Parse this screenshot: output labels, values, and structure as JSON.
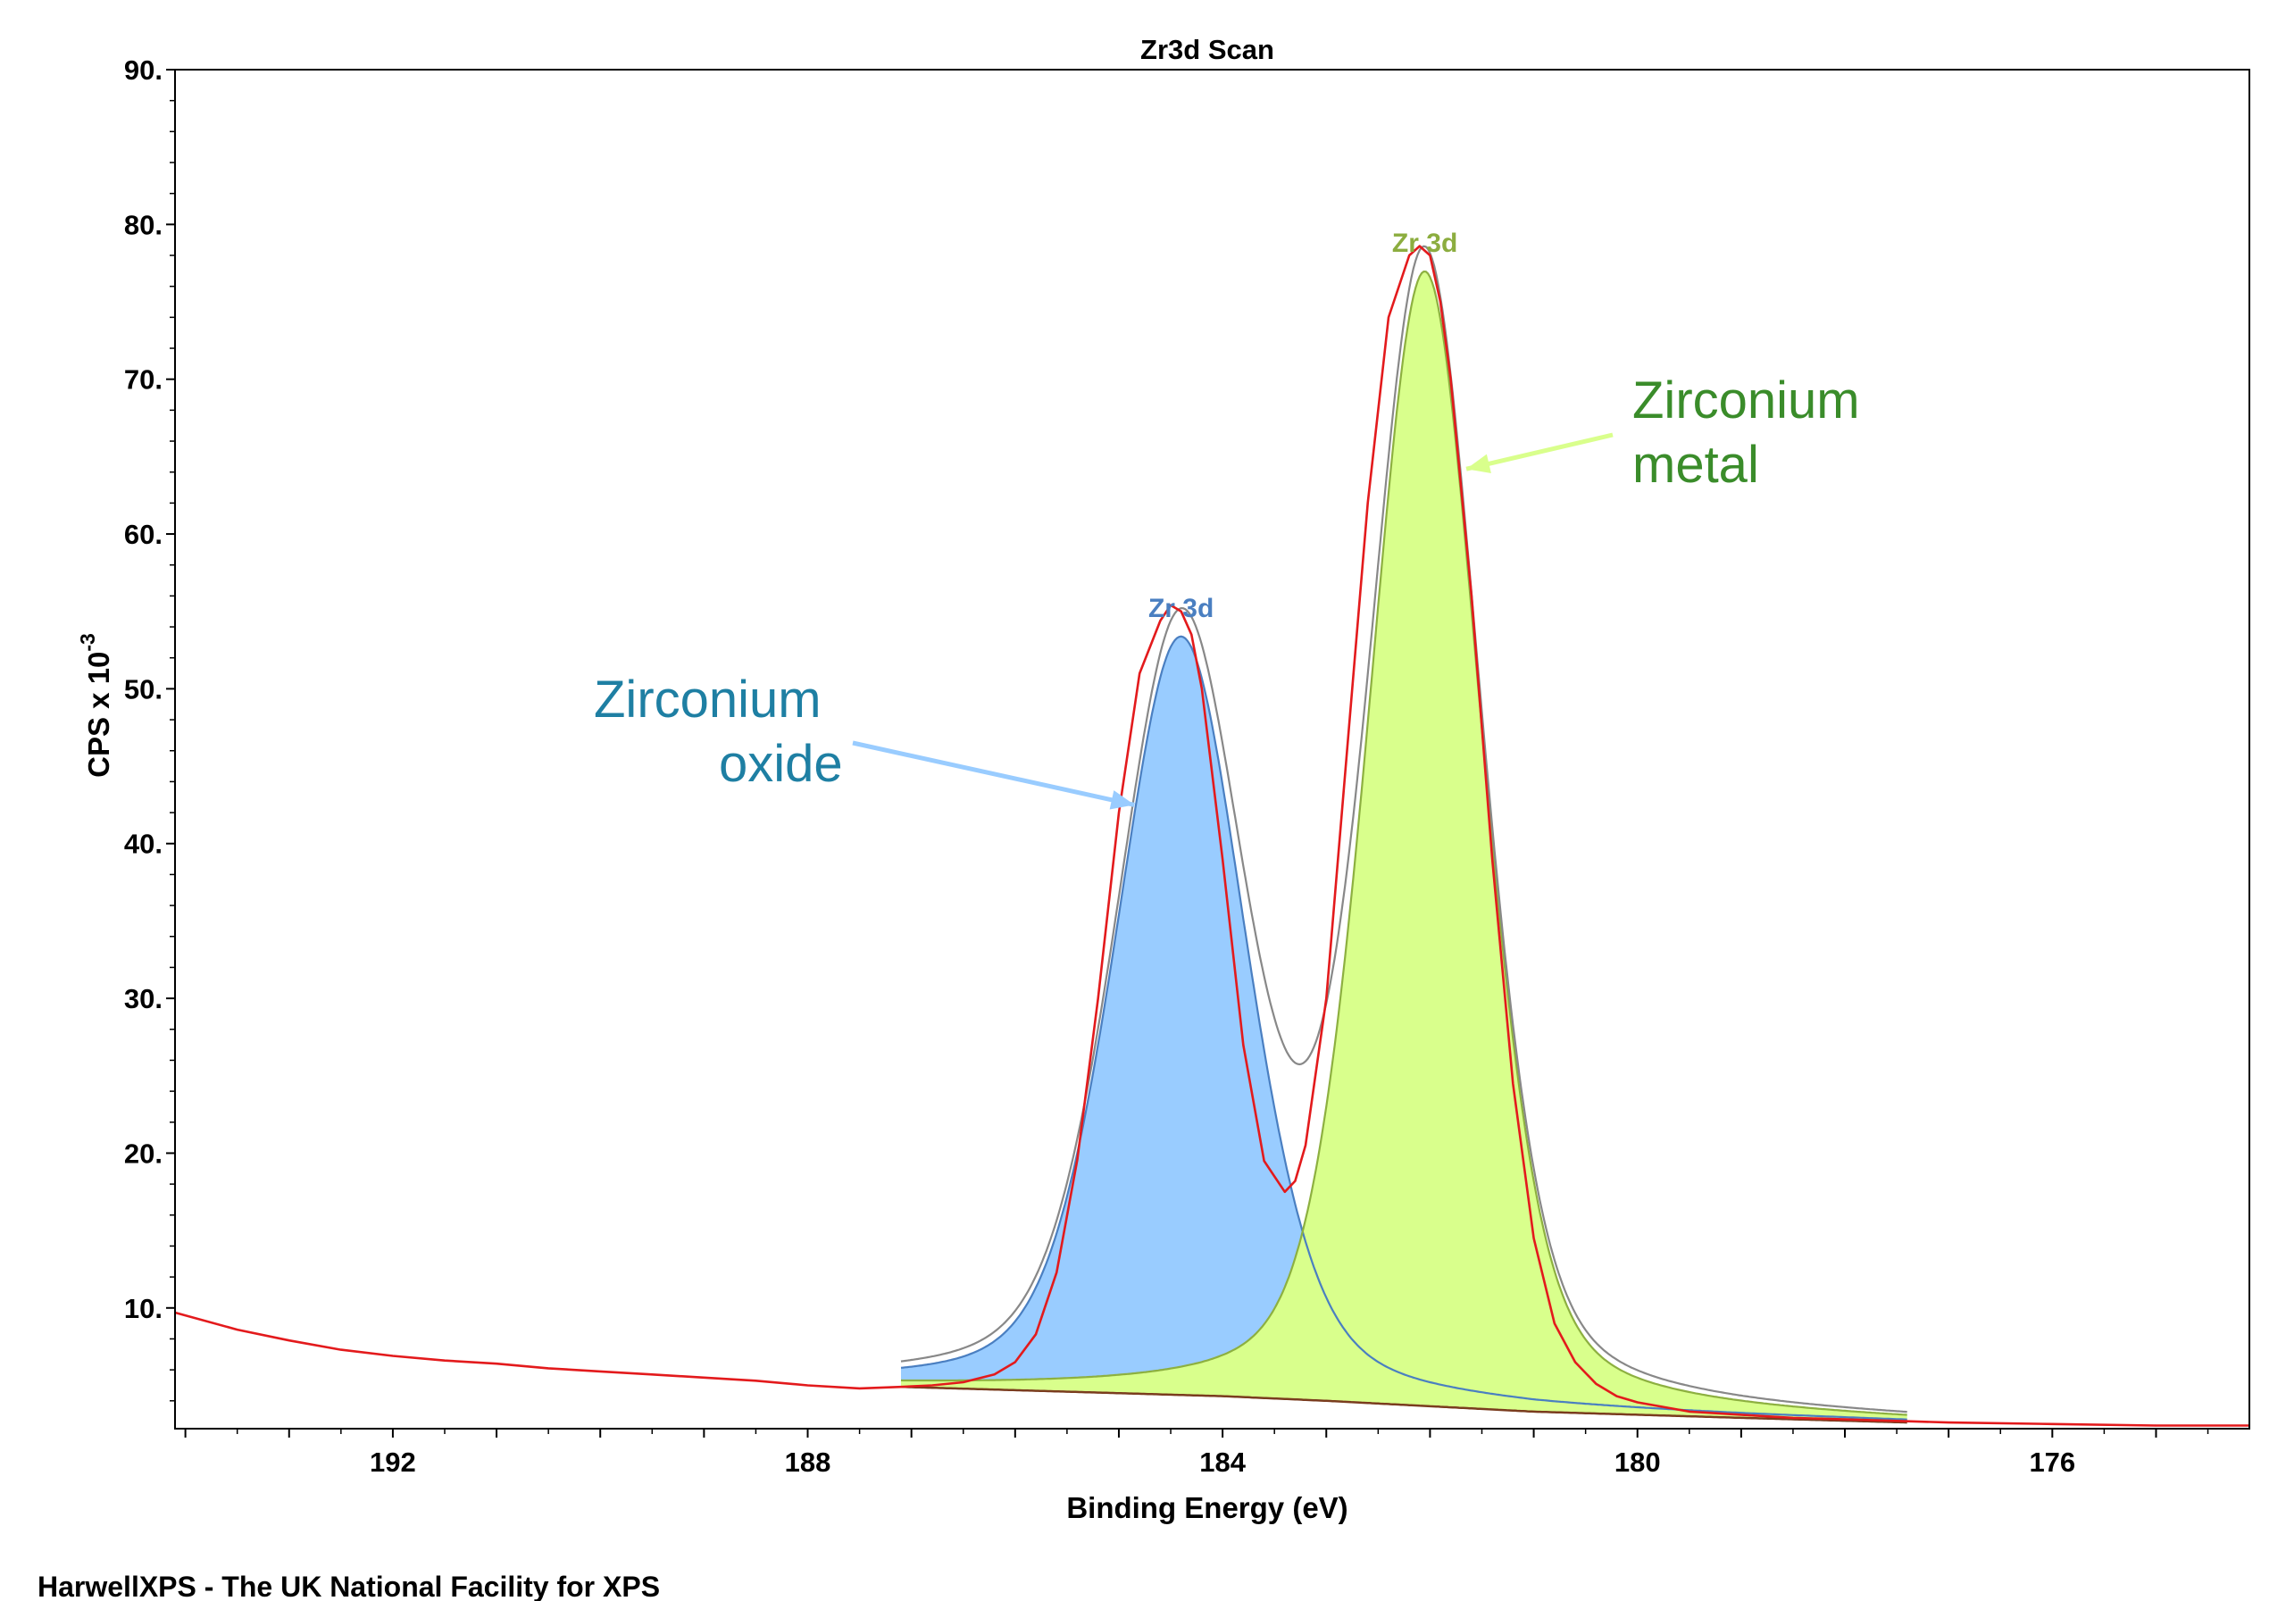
{
  "chart_data": {
    "type": "line",
    "title": "Zr3d Scan",
    "xlabel": "Binding Energy (eV)",
    "ylabel_base": "CPS x 10",
    "ylabel_exponent": "-3",
    "xlim": [
      194.1,
      174.1
    ],
    "ylim": [
      2.2,
      90
    ],
    "x_ticks": [
      192,
      188,
      184,
      180,
      176
    ],
    "x_tick_labels": [
      "192",
      "188",
      "184",
      "180",
      "176"
    ],
    "y_ticks": [
      10,
      20,
      30,
      40,
      50,
      60,
      70,
      80,
      90
    ],
    "y_tick_labels": [
      "10.",
      "20.",
      "30.",
      "40.",
      "50.",
      "60.",
      "70.",
      "80.",
      "90."
    ],
    "components": [
      {
        "name": "Zr 3d",
        "label": "Zr 3d",
        "role": "oxide",
        "center_eV": 184.4,
        "height": 49,
        "fwhm_eV": 1.5,
        "fill_color": "#99ccff",
        "line_color": "#4a7fc1",
        "label_color": "#4a7fc1"
      },
      {
        "name": "Zr 3d",
        "label": "Zr 3d",
        "role": "metal",
        "center_eV": 182.05,
        "height": 73.3,
        "fwhm_eV": 1.3,
        "fill_color": "#d9ff8c",
        "line_color": "#8db040",
        "label_color": "#8cad3f"
      }
    ],
    "background": {
      "x_range": [
        187.1,
        177.4
      ],
      "points": [
        [
          187.1,
          4.9
        ],
        [
          184.0,
          4.3
        ],
        [
          183.0,
          4.0
        ],
        [
          181.0,
          3.3
        ],
        [
          179.0,
          2.9
        ],
        [
          177.4,
          2.6
        ]
      ],
      "color": "#7a3c1e"
    },
    "envelope": {
      "name": "envelope",
      "color": "#888888"
    },
    "measured": {
      "name": "measured data",
      "color": "#e31a1c",
      "x": [
        194.1,
        193.5,
        193.0,
        192.5,
        192.0,
        191.5,
        191.0,
        190.5,
        190.0,
        189.5,
        189.0,
        188.5,
        188.0,
        187.5,
        187.1,
        186.8,
        186.5,
        186.2,
        186.0,
        185.8,
        185.6,
        185.4,
        185.2,
        185.0,
        184.8,
        184.6,
        184.5,
        184.4,
        184.3,
        184.2,
        184.0,
        183.8,
        183.6,
        183.4,
        183.3,
        183.2,
        183.0,
        182.8,
        182.6,
        182.4,
        182.2,
        182.1,
        182.0,
        181.9,
        181.8,
        181.6,
        181.4,
        181.2,
        181.0,
        180.8,
        180.6,
        180.4,
        180.2,
        180.0,
        179.5,
        179.0,
        178.5,
        178.0,
        177.5,
        177.0,
        176.0,
        175.0,
        174.1
      ],
      "y": [
        9.7,
        8.6,
        7.9,
        7.3,
        6.9,
        6.6,
        6.4,
        6.1,
        5.9,
        5.7,
        5.5,
        5.3,
        5.0,
        4.8,
        4.9,
        5.0,
        5.2,
        5.7,
        6.5,
        8.3,
        12.3,
        19.6,
        30.0,
        42.0,
        51.0,
        54.4,
        55.4,
        55.0,
        53.5,
        50.0,
        39.0,
        27.0,
        19.5,
        17.5,
        18.2,
        20.5,
        30.0,
        46.0,
        62.0,
        74.0,
        78.0,
        78.6,
        78.0,
        75.0,
        70.0,
        56.0,
        39.0,
        24.5,
        14.5,
        9.0,
        6.5,
        5.1,
        4.3,
        3.9,
        3.3,
        3.1,
        2.9,
        2.8,
        2.7,
        2.6,
        2.5,
        2.4,
        2.4
      ]
    },
    "annotations": [
      {
        "lines": [
          "Zirconium",
          "oxide"
        ],
        "color": "#1e7fa3",
        "arrow_color": "#99ccff",
        "arrow_to": [
          184.85,
          42.5
        ]
      },
      {
        "lines": [
          "Zirconium",
          "metal"
        ],
        "color": "#3a8c2a",
        "arrow_color": "#d9ff8c",
        "arrow_to": [
          181.65,
          64.2
        ]
      }
    ],
    "footer": "HarwellXPS - The UK National Facility for XPS"
  }
}
